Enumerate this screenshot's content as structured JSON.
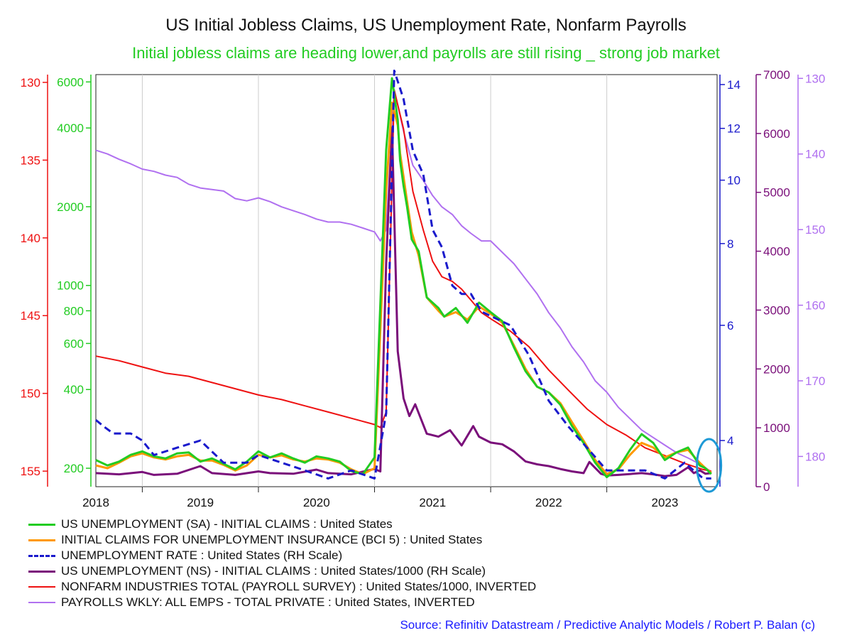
{
  "header": {
    "title": "US Initial Jobless Claims, US Unemployment Rate, Nonfarm Payrolls",
    "subtitle": "Initial jobless claims are heading lower,and payrolls are still rising _ strong job market",
    "subtitle_color": "#22cc22"
  },
  "footer": {
    "source": "Source: Refinitiv Datastream / Predictive Analytic Models / Robert P. Balan (c)",
    "source_color": "#1a1aff"
  },
  "chart_data": {
    "type": "line",
    "x_axis": {
      "ticks": [
        "2018",
        "2019",
        "2020",
        "2021",
        "2022",
        "2023"
      ],
      "range": [
        2017.6,
        2022.95
      ]
    },
    "axes": {
      "payrolls_inverted": {
        "side": "left",
        "color": "#ee1111",
        "ticks": [
          130,
          135,
          140,
          145,
          150,
          155
        ],
        "range": [
          129.5,
          156.0
        ],
        "inverted": true
      },
      "claims_log": {
        "side": "left",
        "color": "#22cc22",
        "ticks": [
          200,
          400,
          600,
          800,
          1000,
          2000,
          4000,
          6000
        ],
        "range": [
          170,
          6400
        ],
        "scale": "log"
      },
      "unemployment_rate": {
        "side": "right",
        "color": "#1a1acc",
        "ticks": [
          4,
          6,
          8,
          10,
          12,
          14
        ],
        "range": [
          3.4,
          14.5
        ],
        "scale": "log"
      },
      "claims_ns_1000": {
        "side": "right",
        "color": "#7a0f7a",
        "ticks": [
          0,
          1000,
          2000,
          3000,
          4000,
          5000,
          6000,
          7000
        ],
        "range": [
          0,
          7000
        ]
      },
      "private_wkly_inverted": {
        "side": "right",
        "color": "#b070f0",
        "ticks": [
          130,
          140,
          150,
          160,
          170,
          180
        ],
        "range": [
          129.5,
          184.0
        ],
        "inverted": true
      }
    },
    "series": [
      {
        "name": "US UNEMPLOYMENT (SA) - INITIAL CLAIMS : United States",
        "color": "#22cc22",
        "style": "solid",
        "axis": "claims_log",
        "x": [
          2017.6,
          2017.7,
          2017.8,
          2017.9,
          2018.0,
          2018.1,
          2018.2,
          2018.3,
          2018.4,
          2018.5,
          2018.6,
          2018.7,
          2018.8,
          2018.9,
          2019.0,
          2019.1,
          2019.2,
          2019.3,
          2019.4,
          2019.5,
          2019.6,
          2019.7,
          2019.8,
          2019.9,
          2020.0,
          2020.1,
          2020.15,
          2020.2,
          2020.22,
          2020.25,
          2020.28,
          2020.32,
          2020.38,
          2020.45,
          2020.55,
          2020.6,
          2020.7,
          2020.8,
          2020.9,
          2021.0,
          2021.1,
          2021.2,
          2021.3,
          2021.4,
          2021.5,
          2021.6,
          2021.7,
          2021.8,
          2021.9,
          2022.0,
          2022.1,
          2022.2,
          2022.3,
          2022.4,
          2022.5,
          2022.6,
          2022.7,
          2022.8,
          2022.85,
          2022.9
        ],
        "y": [
          215,
          205,
          212,
          225,
          232,
          222,
          218,
          228,
          230,
          212,
          218,
          208,
          198,
          212,
          232,
          220,
          228,
          218,
          210,
          222,
          218,
          212,
          195,
          190,
          220,
          3300,
          6200,
          4300,
          3000,
          2400,
          2000,
          1500,
          1350,
          900,
          820,
          760,
          820,
          720,
          860,
          790,
          730,
          580,
          470,
          410,
          390,
          350,
          290,
          250,
          210,
          185,
          200,
          235,
          270,
          250,
          215,
          230,
          240,
          205,
          200,
          190
        ]
      },
      {
        "name": "INITIAL CLAIMS FOR UNEMPLOYMENT INSURANCE (BCI 5) : United States",
        "color": "#ff9900",
        "style": "solid",
        "axis": "claims_log",
        "x": [
          2017.6,
          2017.7,
          2017.8,
          2017.9,
          2018.0,
          2018.1,
          2018.2,
          2018.3,
          2018.4,
          2018.5,
          2018.6,
          2018.7,
          2018.8,
          2018.9,
          2019.0,
          2019.1,
          2019.2,
          2019.3,
          2019.4,
          2019.5,
          2019.6,
          2019.7,
          2019.8,
          2019.9,
          2020.0,
          2020.1,
          2020.15,
          2020.2,
          2020.22,
          2020.25,
          2020.28,
          2020.32,
          2020.38,
          2020.45,
          2020.55,
          2020.6,
          2020.7,
          2020.8,
          2020.9,
          2021.0,
          2021.1,
          2021.2,
          2021.3,
          2021.4,
          2021.5,
          2021.6,
          2021.7,
          2021.8,
          2021.9,
          2022.0,
          2022.1,
          2022.2,
          2022.3,
          2022.4,
          2022.5,
          2022.6,
          2022.7,
          2022.8,
          2022.85,
          2022.9
        ],
        "y": [
          205,
          200,
          210,
          222,
          228,
          220,
          216,
          222,
          225,
          214,
          214,
          206,
          196,
          205,
          225,
          220,
          224,
          216,
          212,
          218,
          216,
          210,
          198,
          190,
          200,
          2300,
          5000,
          4100,
          3200,
          2600,
          2100,
          1600,
          1300,
          900,
          800,
          760,
          790,
          740,
          830,
          780,
          720,
          590,
          480,
          410,
          390,
          355,
          300,
          255,
          215,
          190,
          198,
          225,
          250,
          240,
          220,
          230,
          235,
          210,
          200,
          192
        ]
      },
      {
        "name": "UNEMPLOYMENT RATE : United States (RH Scale)",
        "color": "#1a1acc",
        "style": "dashed",
        "axis": "unemployment_rate",
        "x": [
          2017.6,
          2017.67,
          2017.75,
          2017.9,
          2018.0,
          2018.1,
          2018.3,
          2018.5,
          2018.7,
          2018.9,
          2019.0,
          2019.2,
          2019.4,
          2019.6,
          2019.8,
          2020.0,
          2020.1,
          2020.17,
          2020.25,
          2020.33,
          2020.42,
          2020.5,
          2020.58,
          2020.67,
          2020.75,
          2020.83,
          2020.92,
          2021.0,
          2021.17,
          2021.33,
          2021.5,
          2021.67,
          2021.83,
          2022.0,
          2022.17,
          2022.33,
          2022.5,
          2022.67,
          2022.83,
          2022.9
        ],
        "y": [
          4.3,
          4.2,
          4.1,
          4.1,
          4.0,
          3.8,
          3.9,
          4.0,
          3.7,
          3.7,
          3.8,
          3.7,
          3.6,
          3.5,
          3.6,
          3.5,
          4.4,
          14.7,
          13.3,
          11.1,
          10.2,
          8.4,
          7.9,
          6.9,
          6.7,
          6.7,
          6.3,
          6.2,
          6.0,
          5.4,
          4.6,
          4.2,
          3.9,
          3.6,
          3.6,
          3.6,
          3.5,
          3.7,
          3.5,
          3.5
        ]
      },
      {
        "name": "US UNEMPLOYMENT (NS) - INITIAL CLAIMS : United States/1000 (RH Scale)",
        "color": "#7a0f7a",
        "style": "solid",
        "axis": "claims_ns_1000",
        "x": [
          2017.6,
          2017.8,
          2018.0,
          2018.1,
          2018.3,
          2018.5,
          2018.6,
          2018.8,
          2019.0,
          2019.1,
          2019.3,
          2019.5,
          2019.6,
          2019.8,
          2020.0,
          2020.05,
          2020.1,
          2020.15,
          2020.2,
          2020.25,
          2020.3,
          2020.35,
          2020.45,
          2020.55,
          2020.65,
          2020.75,
          2020.85,
          2020.9,
          2021.0,
          2021.1,
          2021.2,
          2021.3,
          2021.4,
          2021.5,
          2021.6,
          2021.7,
          2021.8,
          2021.85,
          2021.95,
          2022.0,
          2022.1,
          2022.3,
          2022.4,
          2022.5,
          2022.6,
          2022.7,
          2022.75,
          2022.8,
          2022.85,
          2022.9
        ],
        "y": [
          230,
          210,
          250,
          200,
          220,
          350,
          230,
          200,
          260,
          230,
          220,
          290,
          230,
          210,
          300,
          260,
          3800,
          6100,
          2300,
          1500,
          1200,
          1400,
          900,
          850,
          960,
          700,
          1030,
          850,
          750,
          720,
          600,
          430,
          380,
          350,
          300,
          260,
          230,
          420,
          220,
          190,
          200,
          230,
          210,
          180,
          200,
          330,
          230,
          280,
          220,
          230
        ]
      },
      {
        "name": "NONFARM INDUSTRIES TOTAL (PAYROLL SURVEY) : United States/1000, INVERTED",
        "color": "#ee1111",
        "style": "solid",
        "axis": "payrolls_inverted",
        "x": [
          2017.6,
          2017.8,
          2018.0,
          2018.2,
          2018.4,
          2018.6,
          2018.8,
          2019.0,
          2019.2,
          2019.4,
          2019.6,
          2019.8,
          2020.0,
          2020.05,
          2020.1,
          2020.17,
          2020.25,
          2020.33,
          2020.42,
          2020.5,
          2020.58,
          2020.67,
          2020.75,
          2020.83,
          2020.92,
          2021.0,
          2021.17,
          2021.33,
          2021.5,
          2021.67,
          2021.83,
          2022.0,
          2022.17,
          2022.33,
          2022.5,
          2022.67,
          2022.83,
          2022.9
        ],
        "y": [
          147.6,
          147.9,
          148.3,
          148.7,
          148.9,
          149.3,
          149.7,
          150.1,
          150.4,
          150.8,
          151.2,
          151.6,
          152.0,
          152.2,
          151.2,
          130.5,
          133.0,
          137.0,
          139.5,
          141.5,
          142.5,
          142.8,
          143.3,
          144.0,
          144.8,
          145.2,
          146.0,
          147.0,
          148.5,
          149.8,
          151.0,
          152.0,
          152.7,
          153.5,
          154.0,
          154.5,
          154.9,
          155.0
        ]
      },
      {
        "name": "PAYROLLS WKLY: ALL EMPS - TOTAL PRIVATE : United States, INVERTED",
        "color": "#b070f0",
        "style": "solid",
        "axis": "private_wkly_inverted",
        "x": [
          2017.6,
          2017.7,
          2017.8,
          2017.9,
          2018.0,
          2018.1,
          2018.2,
          2018.3,
          2018.4,
          2018.5,
          2018.6,
          2018.7,
          2018.8,
          2018.9,
          2019.0,
          2019.1,
          2019.2,
          2019.3,
          2019.4,
          2019.5,
          2019.6,
          2019.7,
          2019.8,
          2019.9,
          2020.0,
          2020.05,
          2020.1,
          2020.17,
          2020.25,
          2020.33,
          2020.42,
          2020.5,
          2020.58,
          2020.67,
          2020.75,
          2020.83,
          2020.92,
          2021.0,
          2021.1,
          2021.2,
          2021.3,
          2021.4,
          2021.5,
          2021.6,
          2021.7,
          2021.8,
          2021.9,
          2022.0,
          2022.1,
          2022.2,
          2022.3,
          2022.4,
          2022.5,
          2022.6,
          2022.7,
          2022.8,
          2022.85,
          2022.9
        ],
        "y": [
          139.5,
          140.0,
          140.7,
          141.3,
          142.0,
          142.3,
          142.8,
          143.1,
          144.0,
          144.5,
          144.7,
          144.9,
          145.9,
          146.2,
          145.8,
          146.3,
          147.0,
          147.5,
          148.0,
          148.6,
          149.0,
          149.0,
          149.3,
          149.8,
          150.3,
          151.5,
          150.0,
          131.5,
          137.0,
          141.5,
          143.5,
          145.5,
          147.0,
          148.0,
          149.5,
          150.5,
          151.5,
          151.5,
          153.0,
          154.5,
          156.5,
          158.5,
          161.0,
          163.0,
          165.5,
          167.5,
          170.0,
          171.5,
          173.5,
          175.0,
          176.5,
          177.5,
          178.5,
          179.5,
          180.2,
          181.0,
          181.5,
          182.0
        ]
      }
    ],
    "annotation": {
      "shape": "ellipse",
      "color": "#1e9ad6",
      "x": 2022.85
    }
  }
}
